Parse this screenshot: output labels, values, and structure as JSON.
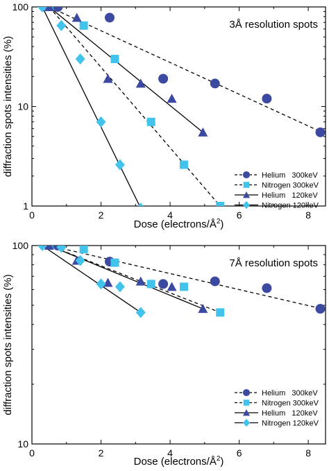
{
  "colors": {
    "helium": "#3b4aa0",
    "nitrogen": "#41c3ec",
    "axis": "#000000"
  },
  "chart_data": [
    {
      "type": "scatter",
      "yscale": "log",
      "title": "3Å resolution spots",
      "xlabel_pre": "Dose (electrons/Å",
      "xlabel_sup": "2",
      "xlabel_post": ")",
      "ylabel": "diffraction spots intensities (%)",
      "xlim": [
        0,
        8.5
      ],
      "ylim": [
        1,
        100
      ],
      "x_ticks": [
        "0",
        "2",
        "4",
        "6",
        "8"
      ],
      "y_ticks": [
        "1",
        "10",
        "100"
      ],
      "legend_position": "bottom-right",
      "series": [
        {
          "name": "Helium   300keV",
          "marker": "circle",
          "color": "#3b4aa0",
          "line": "dashed",
          "x": [
            0.75,
            2.25,
            3.8,
            5.3,
            6.8,
            8.35
          ],
          "y": [
            100,
            78,
            19,
            17,
            12,
            5.5
          ],
          "fit": [
            [
              0.5,
              100
            ],
            [
              8.4,
              5.5
            ]
          ]
        },
        {
          "name": "Nitrogen 300keV",
          "marker": "square",
          "color": "#41c3ec",
          "line": "dashed",
          "x": [
            0.5,
            1.5,
            2.4,
            3.45,
            4.4,
            5.45
          ],
          "y": [
            100,
            65,
            30,
            7,
            2.6,
            1.0
          ],
          "fit": [
            [
              0.5,
              100
            ],
            [
              5.45,
              1.0
            ]
          ]
        },
        {
          "name": "Helium   120keV",
          "marker": "triangle",
          "color": "#3b4aa0",
          "line": "solid",
          "x": [
            0.5,
            1.3,
            2.2,
            3.15,
            4.05,
            4.95
          ],
          "y": [
            100,
            78,
            19,
            17,
            12,
            5.5
          ],
          "fit": [
            [
              0.5,
              100
            ],
            [
              4.95,
              5.5
            ]
          ]
        },
        {
          "name": "Nitrogen 120keV",
          "marker": "diamond",
          "color": "#41c3ec",
          "line": "solid",
          "x": [
            0.3,
            0.85,
            1.4,
            2.0,
            2.55,
            3.15
          ],
          "y": [
            100,
            65,
            30,
            7,
            2.6,
            0.95
          ],
          "fit": [
            [
              0.3,
              100
            ],
            [
              3.15,
              0.95
            ]
          ]
        }
      ]
    },
    {
      "type": "scatter",
      "yscale": "log",
      "title": "7Å resolution spots",
      "xlabel_pre": "Dose (electrons/Å",
      "xlabel_sup": "2",
      "xlabel_post": ")",
      "ylabel": "diffraction spots intensities (%)",
      "xlim": [
        0,
        8.5
      ],
      "ylim": [
        10,
        100
      ],
      "x_ticks": [
        "0",
        "2",
        "4",
        "6",
        "8"
      ],
      "y_ticks": [
        "10",
        "100"
      ],
      "legend_position": "bottom-right",
      "series": [
        {
          "name": "Helium   300keV",
          "marker": "circle",
          "color": "#3b4aa0",
          "line": "dashed",
          "x": [
            0.75,
            2.25,
            3.8,
            5.3,
            6.8,
            8.35
          ],
          "y": [
            100,
            83,
            64,
            66,
            61,
            48
          ],
          "fit": [
            [
              0.5,
              100
            ],
            [
              8.4,
              48
            ]
          ]
        },
        {
          "name": "Nitrogen 300keV",
          "marker": "square",
          "color": "#41c3ec",
          "line": "dashed",
          "x": [
            0.5,
            1.5,
            2.4,
            3.45,
            4.4,
            5.45
          ],
          "y": [
            100,
            96,
            82,
            64,
            62,
            46
          ],
          "fit": [
            [
              0.5,
              100
            ],
            [
              5.45,
              46
            ]
          ]
        },
        {
          "name": "Helium   120keV",
          "marker": "triangle",
          "color": "#3b4aa0",
          "line": "solid",
          "x": [
            0.5,
            1.3,
            2.2,
            3.15,
            4.05,
            4.95
          ],
          "y": [
            100,
            84,
            65,
            66,
            62,
            48
          ],
          "fit": [
            [
              0.5,
              100
            ],
            [
              4.95,
              48
            ]
          ]
        },
        {
          "name": "Nitrogen 120keV",
          "marker": "diamond",
          "color": "#41c3ec",
          "line": "solid",
          "x": [
            0.3,
            0.85,
            1.4,
            2.0,
            2.55,
            3.15
          ],
          "y": [
            100,
            98,
            84,
            64,
            62,
            46
          ],
          "fit": [
            [
              0.3,
              100
            ],
            [
              3.15,
              46
            ]
          ]
        }
      ]
    }
  ]
}
